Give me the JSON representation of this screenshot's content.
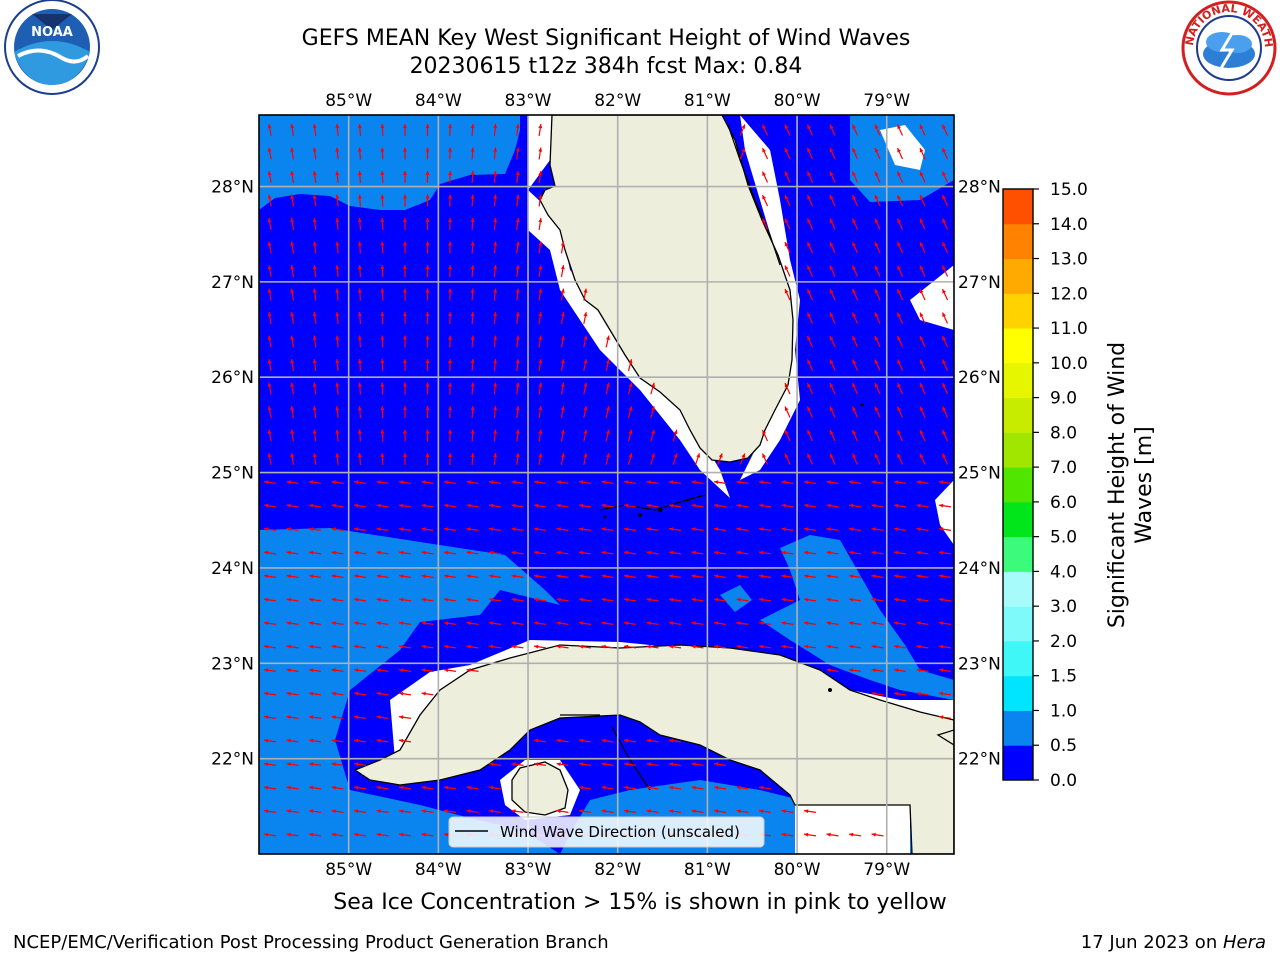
{
  "title": {
    "line1": "GEFS MEAN Key West Significant Height of Wind Waves",
    "line2": "20230615 t12z 384h fcst   Max: 0.84"
  },
  "logos": {
    "left": {
      "name": "noaa-logo",
      "text": "NOAA"
    },
    "right": {
      "name": "nws-logo",
      "text": "NATIONAL WEATHER SERVICE"
    }
  },
  "map": {
    "lon_ticks": [
      "85°W",
      "84°W",
      "83°W",
      "82°W",
      "81°W",
      "80°W",
      "79°W"
    ],
    "lat_ticks": [
      "28°N",
      "27°N",
      "26°N",
      "25°N",
      "24°N",
      "23°N",
      "22°N"
    ],
    "lon_range": [
      -86.0,
      -78.25
    ],
    "lat_range": [
      21.0,
      28.75
    ],
    "legend_label": "Wind Wave Direction (unscaled)",
    "colors": {
      "ocean_low": "#0000ff",
      "ocean_mid": "#0a85f0",
      "land": "#eeeedc",
      "arrow": "#ff0000",
      "grid": "#b0b0b0"
    }
  },
  "colorbar": {
    "label_line1": "Significant Height of Wind",
    "label_line2": "Waves [m]",
    "ticks": [
      "0.0",
      "0.5",
      "1.0",
      "1.5",
      "2.0",
      "3.0",
      "4.0",
      "5.0",
      "6.0",
      "7.0",
      "8.0",
      "9.0",
      "10.0",
      "11.0",
      "12.0",
      "13.0",
      "14.0",
      "15.0"
    ],
    "colors": [
      "#0000ff",
      "#0a85f0",
      "#00e5ff",
      "#3ff7f7",
      "#7ffafa",
      "#a8fbfb",
      "#3dfb7a",
      "#00e61a",
      "#50e600",
      "#a0e600",
      "#c8ec00",
      "#e6f500",
      "#ffff00",
      "#ffd200",
      "#ffaa00",
      "#ff8200",
      "#ff5000",
      "#ff1e00",
      "#ff0000"
    ]
  },
  "footer_note": "Sea Ice Concentration > 15% is shown in pink to yellow",
  "credit": {
    "left": "NCEP/EMC/Verification Post Processing Product Generation Branch",
    "right_date": "17 Jun 2023 on ",
    "right_host": "Hera"
  }
}
